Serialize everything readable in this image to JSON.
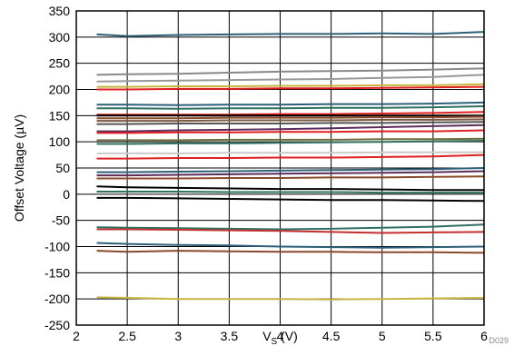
{
  "chart_data": {
    "type": "line",
    "title": "",
    "xlabel_main": "V",
    "xlabel_sub": "S",
    "xlabel_suffix": " (V)",
    "ylabel": "Offset Voltage (µV)",
    "footnote": "D029",
    "xlim": [
      2,
      6
    ],
    "ylim": [
      -250,
      350
    ],
    "grid": true,
    "x_ticks": [
      "2",
      "2.5",
      "3",
      "3.5",
      "4",
      "4.5",
      "5",
      "5.5",
      "6"
    ],
    "y_ticks": [
      "350",
      "300",
      "250",
      "200",
      "150",
      "100",
      "50",
      "0",
      "-50",
      "-100",
      "-150",
      "-200",
      "-250"
    ],
    "x": [
      2.2,
      2.5,
      3,
      3.5,
      4,
      4.5,
      5,
      5.5,
      6
    ],
    "series": [
      {
        "color": "#2e5f78",
        "values": [
          305,
          302,
          304,
          305,
          306,
          306,
          307,
          306,
          310
        ]
      },
      {
        "color": "#888888",
        "values": [
          228,
          229,
          230,
          232,
          234,
          235,
          236,
          238,
          240
        ]
      },
      {
        "color": "#999999",
        "values": [
          215,
          216,
          217,
          218,
          219,
          220,
          222,
          224,
          228
        ]
      },
      {
        "color": "#c8b440",
        "values": [
          205,
          205,
          206,
          206,
          207,
          207,
          208,
          208,
          210
        ]
      },
      {
        "color": "#e02020",
        "values": [
          200,
          200,
          201,
          201,
          202,
          202,
          203,
          204,
          205
        ]
      },
      {
        "color": "#2e5f78",
        "values": [
          171,
          171,
          170,
          171,
          171,
          172,
          172,
          173,
          175
        ]
      },
      {
        "color": "#2f7060",
        "values": [
          164,
          164,
          163,
          164,
          164,
          165,
          165,
          166,
          168
        ]
      },
      {
        "color": "#e02020",
        "values": [
          152,
          152,
          152,
          152,
          153,
          153,
          154,
          155,
          157
        ]
      },
      {
        "color": "#000000",
        "values": [
          150,
          150,
          150,
          150,
          150,
          150,
          150,
          150,
          150
        ]
      },
      {
        "color": "#8b4a2b",
        "values": [
          145,
          145,
          145,
          146,
          146,
          146,
          147,
          147,
          148
        ]
      },
      {
        "color": "#7a5a40",
        "values": [
          140,
          140,
          140,
          141,
          141,
          141,
          142,
          142,
          143
        ]
      },
      {
        "color": "#555555",
        "values": [
          134,
          134,
          135,
          135,
          135,
          136,
          136,
          137,
          138
        ]
      },
      {
        "color": "#5c2c5c",
        "values": [
          120,
          120,
          122,
          123,
          124,
          126,
          128,
          130,
          132
        ]
      },
      {
        "color": "#e02020",
        "values": [
          117,
          117,
          118,
          118,
          119,
          119,
          120,
          120,
          122
        ]
      },
      {
        "color": "#2f7060",
        "values": [
          96,
          96,
          97,
          97,
          98,
          99,
          100,
          101,
          102
        ]
      },
      {
        "color": "#6e6e40",
        "values": [
          103,
          103,
          103,
          104,
          104,
          104,
          105,
          105,
          106
        ]
      },
      {
        "color": "#cccccc",
        "values": [
          78,
          78,
          78,
          79,
          79,
          79,
          80,
          80,
          80
        ]
      },
      {
        "color": "#e02020",
        "values": [
          68,
          68,
          69,
          69,
          70,
          70,
          71,
          72,
          75
        ]
      },
      {
        "color": "#2e5f78",
        "values": [
          42,
          42,
          43,
          44,
          45,
          46,
          47,
          48,
          50
        ]
      },
      {
        "color": "#5c2c5c",
        "values": [
          36,
          36,
          37,
          38,
          39,
          40,
          41,
          42,
          44
        ]
      },
      {
        "color": "#8b4a2b",
        "values": [
          30,
          30,
          30,
          31,
          31,
          32,
          32,
          33,
          34
        ]
      },
      {
        "color": "#000000",
        "values": [
          15,
          13,
          12,
          11,
          10,
          10,
          9,
          8,
          8
        ]
      },
      {
        "color": "#2f7060",
        "values": [
          5,
          5,
          5,
          4,
          4,
          4,
          3,
          3,
          3
        ]
      },
      {
        "color": "#000000",
        "values": [
          -7,
          -7,
          -8,
          -9,
          -10,
          -11,
          -11,
          -12,
          -13
        ]
      },
      {
        "color": "#2f7060",
        "values": [
          -63,
          -64,
          -65,
          -66,
          -67,
          -66,
          -64,
          -62,
          -58
        ]
      },
      {
        "color": "#c43030",
        "values": [
          -67,
          -67,
          -68,
          -69,
          -70,
          -72,
          -74,
          -73,
          -72
        ]
      },
      {
        "color": "#2e5f78",
        "values": [
          -93,
          -95,
          -97,
          -98,
          -100,
          -101,
          -102,
          -101,
          -100
        ]
      },
      {
        "color": "#8b4a2b",
        "values": [
          -108,
          -110,
          -108,
          -109,
          -110,
          -110,
          -111,
          -111,
          -112
        ]
      },
      {
        "color": "#c8b440",
        "values": [
          -197,
          -198,
          -200,
          -200,
          -200,
          -201,
          -200,
          -199,
          -198
        ]
      }
    ]
  }
}
